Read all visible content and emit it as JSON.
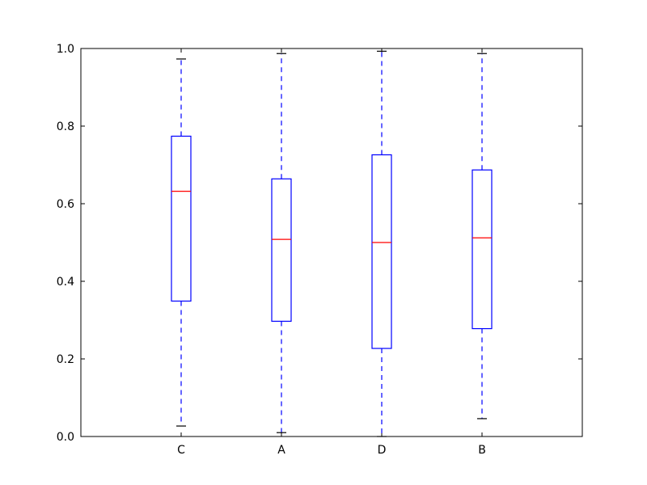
{
  "chart_data": {
    "type": "box",
    "title": "",
    "xlabel": "",
    "ylabel": "",
    "ylim": [
      0.0,
      1.0
    ],
    "yticks": [
      0.0,
      0.2,
      0.4,
      0.6,
      0.8,
      1.0
    ],
    "ytick_labels": [
      "0.0",
      "0.2",
      "0.4",
      "0.6",
      "0.8",
      "1.0"
    ],
    "categories": [
      "C",
      "A",
      "D",
      "B"
    ],
    "boxes": [
      {
        "label": "C",
        "whisker_low": 0.027,
        "q1": 0.349,
        "median": 0.632,
        "q3": 0.774,
        "whisker_high": 0.973
      },
      {
        "label": "A",
        "whisker_low": 0.01,
        "q1": 0.297,
        "median": 0.508,
        "q3": 0.664,
        "whisker_high": 0.987
      },
      {
        "label": "D",
        "whisker_low": 0.0,
        "q1": 0.227,
        "median": 0.5,
        "q3": 0.726,
        "whisker_high": 0.993
      },
      {
        "label": "B",
        "whisker_low": 0.046,
        "q1": 0.278,
        "median": 0.512,
        "q3": 0.687,
        "whisker_high": 0.987
      }
    ],
    "grid": false,
    "colors": {
      "box": "#0000ff",
      "median": "#ff0000",
      "cap": "#000000",
      "axes": "#000000"
    }
  }
}
